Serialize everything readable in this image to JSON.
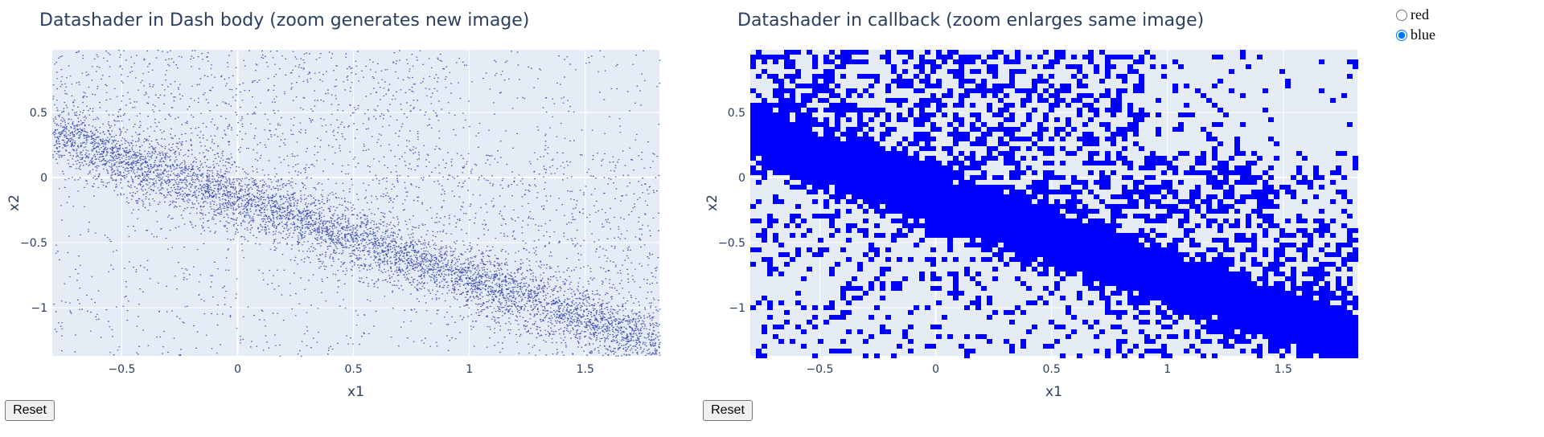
{
  "left_plot": {
    "title": "Datashader in Dash body (zoom generates new image)",
    "reset_label": "Reset"
  },
  "right_plot": {
    "title": "Datashader in callback (zoom enlarges same image)",
    "reset_label": "Reset"
  },
  "color_options": {
    "options": [
      {
        "label": "red",
        "checked": false
      },
      {
        "label": "blue",
        "checked": true
      }
    ]
  },
  "colors": {
    "plot_bg": "#e5ecf6",
    "left_points": "#0a1f9e",
    "right_points": "#0000ff",
    "text": "#2a3f5f"
  },
  "chart_data": [
    {
      "type": "heatmap",
      "title": "Datashader in Dash body (zoom generates new image)",
      "xlabel": "x1",
      "ylabel": "x2",
      "xlim": [
        -0.8,
        1.82
      ],
      "ylim": [
        -1.37,
        0.98
      ],
      "xticks": [
        "−0.5",
        "0",
        "0.5",
        "1",
        "1.5"
      ],
      "yticks": [
        "0.5",
        "0",
        "−0.5",
        "−1"
      ],
      "xtick_values": [
        -0.5,
        0,
        0.5,
        1,
        1.5
      ],
      "ytick_values": [
        0.5,
        0,
        -0.5,
        -1
      ],
      "color": "#0a1f9e",
      "grid": true
    },
    {
      "type": "heatmap",
      "title": "Datashader in callback (zoom enlarges same image)",
      "xlabel": "x1",
      "ylabel": "x2",
      "xlim": [
        -0.8,
        1.82
      ],
      "ylim": [
        -1.37,
        0.98
      ],
      "xticks": [
        "−0.5",
        "0",
        "0.5",
        "1",
        "1.5"
      ],
      "yticks": [
        "0.5",
        "0",
        "−0.5",
        "−1"
      ],
      "xtick_values": [
        -0.5,
        0,
        0.5,
        1,
        1.5
      ],
      "ytick_values": [
        0.5,
        0,
        -0.5,
        -1
      ],
      "color": "#0000ff",
      "grid": true
    }
  ]
}
